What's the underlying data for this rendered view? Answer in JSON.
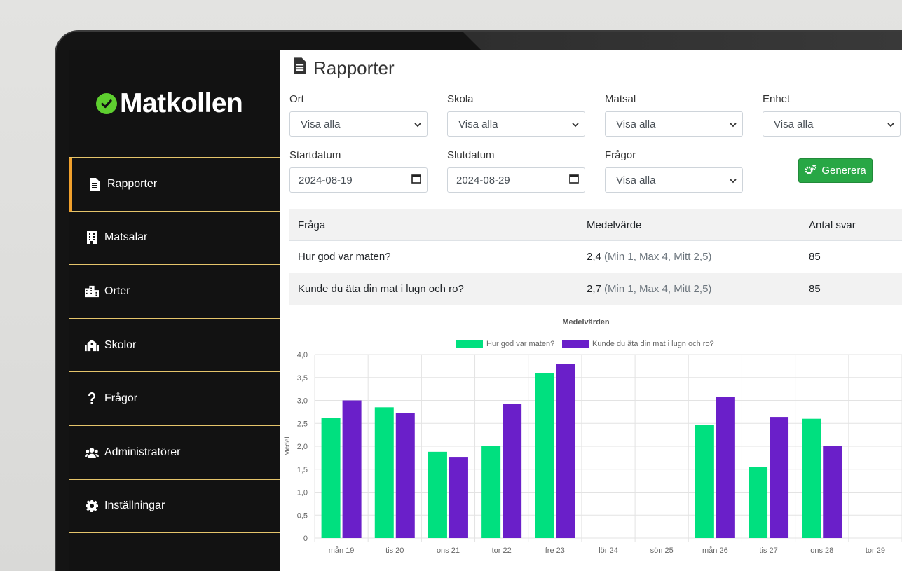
{
  "app": {
    "logo_text": "Matkollen"
  },
  "sidebar": {
    "items": [
      {
        "label": "Rapporter",
        "icon": "report-icon",
        "active": true
      },
      {
        "label": "Matsalar",
        "icon": "building-icon"
      },
      {
        "label": "Orter",
        "icon": "city-icon"
      },
      {
        "label": "Skolor",
        "icon": "school-icon"
      },
      {
        "label": "Frågor",
        "icon": "question-icon"
      },
      {
        "label": "Administratörer",
        "icon": "users-icon"
      },
      {
        "label": "Inställningar",
        "icon": "gear-icon"
      }
    ]
  },
  "page": {
    "title": "Rapporter"
  },
  "filters": {
    "ort": {
      "label": "Ort",
      "value": "Visa alla"
    },
    "skola": {
      "label": "Skola",
      "value": "Visa alla"
    },
    "matsal": {
      "label": "Matsal",
      "value": "Visa alla"
    },
    "enhet": {
      "label": "Enhet",
      "value": "Visa alla"
    },
    "startdatum": {
      "label": "Startdatum",
      "value": "2024-08-19"
    },
    "slutdatum": {
      "label": "Slutdatum",
      "value": "2024-08-29"
    },
    "fragor": {
      "label": "Frågor",
      "value": "Visa alla"
    },
    "generate_label": "Generera"
  },
  "table": {
    "headers": [
      "Fråga",
      "Medelvärde",
      "Antal svar"
    ],
    "rows": [
      {
        "question": "Hur god var maten?",
        "mean": "2,4",
        "detail": "(Min 1, Max 4, Mitt 2,5)",
        "count": "85"
      },
      {
        "question": "Kunde du äta din mat i lugn och ro?",
        "mean": "2,7",
        "detail": "(Min 1, Max 4, Mitt 2,5)",
        "count": "85"
      }
    ]
  },
  "chart_data": {
    "type": "bar",
    "title": "Medelvärden",
    "ylabel": "Medel",
    "xlabel": "",
    "ylim": [
      0,
      4
    ],
    "yticks": [
      "0",
      "0,5",
      "1,0",
      "1,5",
      "2,0",
      "2,5",
      "3,0",
      "3,5",
      "4,0"
    ],
    "grid": true,
    "legend": "top",
    "categories": [
      "mån 19",
      "tis 20",
      "ons 21",
      "tor 22",
      "fre 23",
      "lör 24",
      "sön 25",
      "mån 26",
      "tis 27",
      "ons 28",
      "tor 29"
    ],
    "series": [
      {
        "name": "Hur god var maten?",
        "color": "#00e07f",
        "values": [
          2.62,
          2.85,
          1.88,
          2.0,
          3.6,
          null,
          null,
          2.46,
          1.55,
          2.6,
          null
        ]
      },
      {
        "name": "Kunde du äta din mat i lugn och ro?",
        "color": "#6a1fc9",
        "values": [
          3.0,
          2.72,
          1.77,
          2.92,
          3.8,
          null,
          null,
          3.07,
          2.64,
          2.0,
          null
        ]
      }
    ]
  },
  "colors": {
    "accent": "#f0a02c",
    "divider": "#e5c46b",
    "success": "#28a745",
    "logo_check": "#5ecf2f"
  }
}
